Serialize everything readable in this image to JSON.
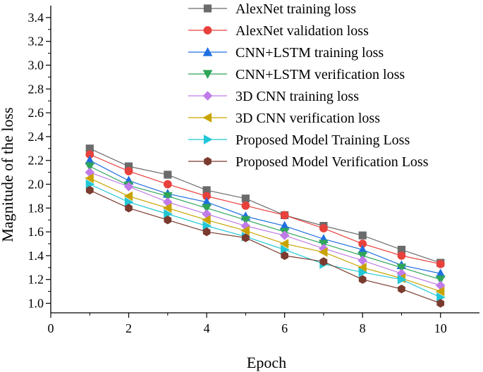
{
  "chart_data": {
    "type": "line",
    "title": "",
    "xlabel": "Epoch",
    "ylabel": "Magnitude of the loss",
    "xlim": [
      0,
      11
    ],
    "ylim": [
      0.92,
      3.5
    ],
    "xticks": [
      "0",
      "2",
      "4",
      "6",
      "8",
      "10"
    ],
    "yticks": [
      "1.0",
      "1.2",
      "1.4",
      "1.6",
      "1.8",
      "2.0",
      "2.2",
      "2.4",
      "2.6",
      "2.8",
      "3.0",
      "3.2",
      "3.4"
    ],
    "legend_position": "top-right",
    "grid": false,
    "x": [
      1,
      2,
      3,
      4,
      5,
      6,
      7,
      8,
      9,
      10
    ],
    "series": [
      {
        "name": "AlexNet training loss",
        "color": "#6b6b6b",
        "marker": "square",
        "values": [
          2.3,
          2.15,
          2.08,
          1.95,
          1.88,
          1.74,
          1.65,
          1.57,
          1.45,
          1.34
        ]
      },
      {
        "name": "AlexNet validation loss",
        "color": "#e8413c",
        "marker": "circle",
        "values": [
          2.25,
          2.11,
          2.0,
          1.9,
          1.82,
          1.74,
          1.63,
          1.5,
          1.4,
          1.33
        ]
      },
      {
        "name": "CNN+LSTM training loss",
        "color": "#1f6fe0",
        "marker": "triangle-up",
        "values": [
          2.2,
          2.03,
          1.92,
          1.85,
          1.73,
          1.65,
          1.54,
          1.45,
          1.32,
          1.25
        ]
      },
      {
        "name": "CNN+LSTM verification loss",
        "color": "#2fa55a",
        "marker": "triangle-down",
        "values": [
          2.15,
          1.99,
          1.9,
          1.8,
          1.7,
          1.6,
          1.5,
          1.4,
          1.3,
          1.2
        ]
      },
      {
        "name": "3D CNN training loss",
        "color": "#c07be8",
        "marker": "diamond",
        "values": [
          2.1,
          1.98,
          1.85,
          1.75,
          1.65,
          1.57,
          1.46,
          1.36,
          1.25,
          1.15
        ]
      },
      {
        "name": "3D CNN verification loss",
        "color": "#c9a300",
        "marker": "triangle-left",
        "values": [
          2.05,
          1.9,
          1.8,
          1.7,
          1.61,
          1.5,
          1.43,
          1.3,
          1.21,
          1.1
        ]
      },
      {
        "name": "Proposed Model Training Loss",
        "color": "#22c7d6",
        "marker": "triangle-right",
        "values": [
          2.0,
          1.85,
          1.75,
          1.65,
          1.56,
          1.45,
          1.33,
          1.26,
          1.2,
          1.05
        ]
      },
      {
        "name": "Proposed Model Verification Loss",
        "color": "#7a3b2e",
        "marker": "hexagon",
        "values": [
          1.95,
          1.8,
          1.7,
          1.6,
          1.55,
          1.4,
          1.35,
          1.2,
          1.12,
          1.0
        ]
      }
    ]
  }
}
